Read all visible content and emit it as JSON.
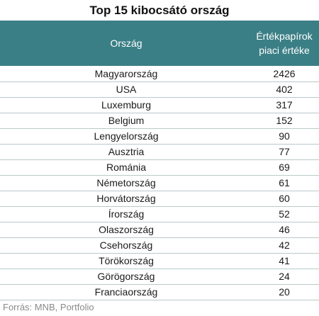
{
  "title": "Top 15 kibocsátó ország",
  "source": "Forrás: MNB, Portfolio",
  "chart_data": {
    "type": "table",
    "title": "Top 15 kibocsátó ország",
    "columns": [
      "Ország",
      "Értékpapírok piaci értéke"
    ],
    "header_color": "#3b7f86",
    "rows": [
      {
        "country": "Magyarország",
        "value": "2426"
      },
      {
        "country": "USA",
        "value": "402"
      },
      {
        "country": "Luxemburg",
        "value": "317"
      },
      {
        "country": "Belgium",
        "value": "152"
      },
      {
        "country": "Lengyelország",
        "value": "90"
      },
      {
        "country": "Ausztria",
        "value": "77"
      },
      {
        "country": "Románia",
        "value": "69"
      },
      {
        "country": "Németország",
        "value": "61"
      },
      {
        "country": "Horvátország",
        "value": "60"
      },
      {
        "country": "Írország",
        "value": "52"
      },
      {
        "country": "Olaszország",
        "value": "46"
      },
      {
        "country": "Csehország",
        "value": "42"
      },
      {
        "country": "Törökország",
        "value": "41"
      },
      {
        "country": "Görögország",
        "value": "24"
      },
      {
        "country": "Franciaország",
        "value": "20"
      }
    ]
  },
  "header": {
    "country_label": "Ország",
    "value_label_line1": "Értékpapírok",
    "value_label_line2": "piaci értéke"
  }
}
